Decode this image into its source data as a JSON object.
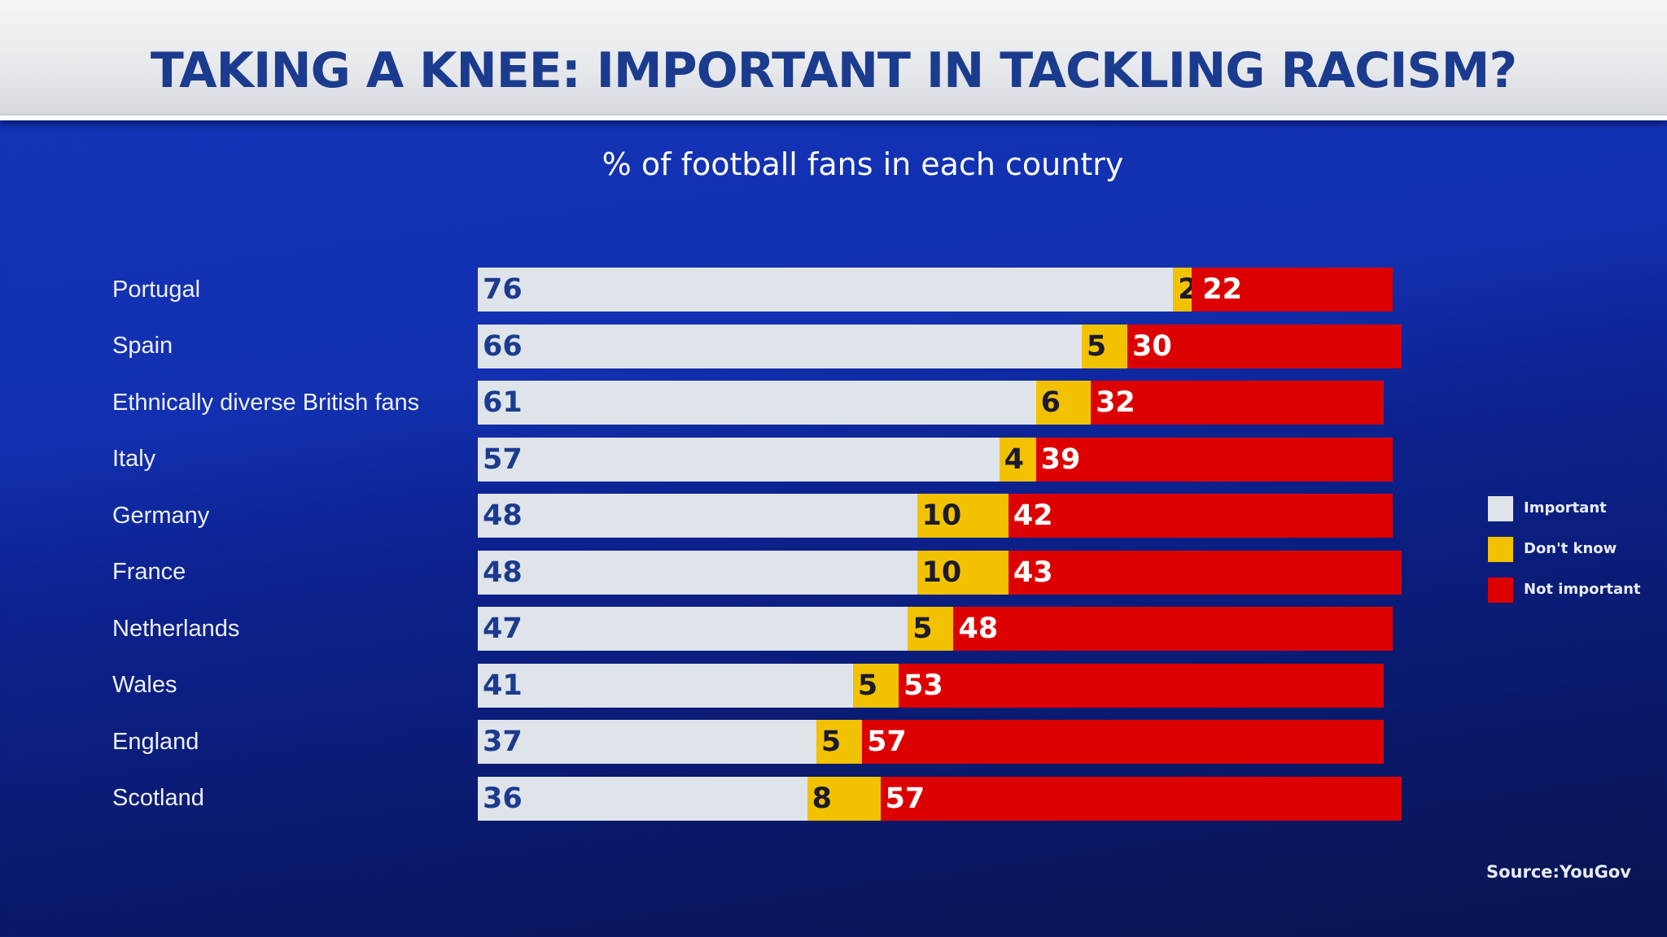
{
  "chart_data": {
    "type": "bar",
    "orientation": "horizontal",
    "stacked": true,
    "title": "TAKING A KNEE: IMPORTANT IN TACKLING RACISM?",
    "subtitle": "% of football fans in each country",
    "categories": [
      "Portugal",
      "Spain",
      "Ethnically diverse British fans",
      "Italy",
      "Germany",
      "France",
      "Netherlands",
      "Wales",
      "England",
      "Scotland"
    ],
    "series": [
      {
        "name": "Important",
        "color": "#dfe3ea",
        "label_color": "#1b3b8e",
        "values": [
          76,
          66,
          61,
          57,
          48,
          48,
          47,
          41,
          37,
          36
        ]
      },
      {
        "name": "Don't know",
        "color": "#f2c200",
        "label_color": "#1a1a30",
        "values": [
          2,
          5,
          6,
          4,
          10,
          10,
          5,
          5,
          5,
          8
        ]
      },
      {
        "name": "Not important",
        "color": "#dd0000",
        "label_color": "#ffffff",
        "values": [
          22,
          30,
          32,
          39,
          42,
          43,
          48,
          53,
          57,
          57
        ]
      }
    ],
    "legend_position": "right",
    "grid": false,
    "source": "Source:YouGov"
  }
}
